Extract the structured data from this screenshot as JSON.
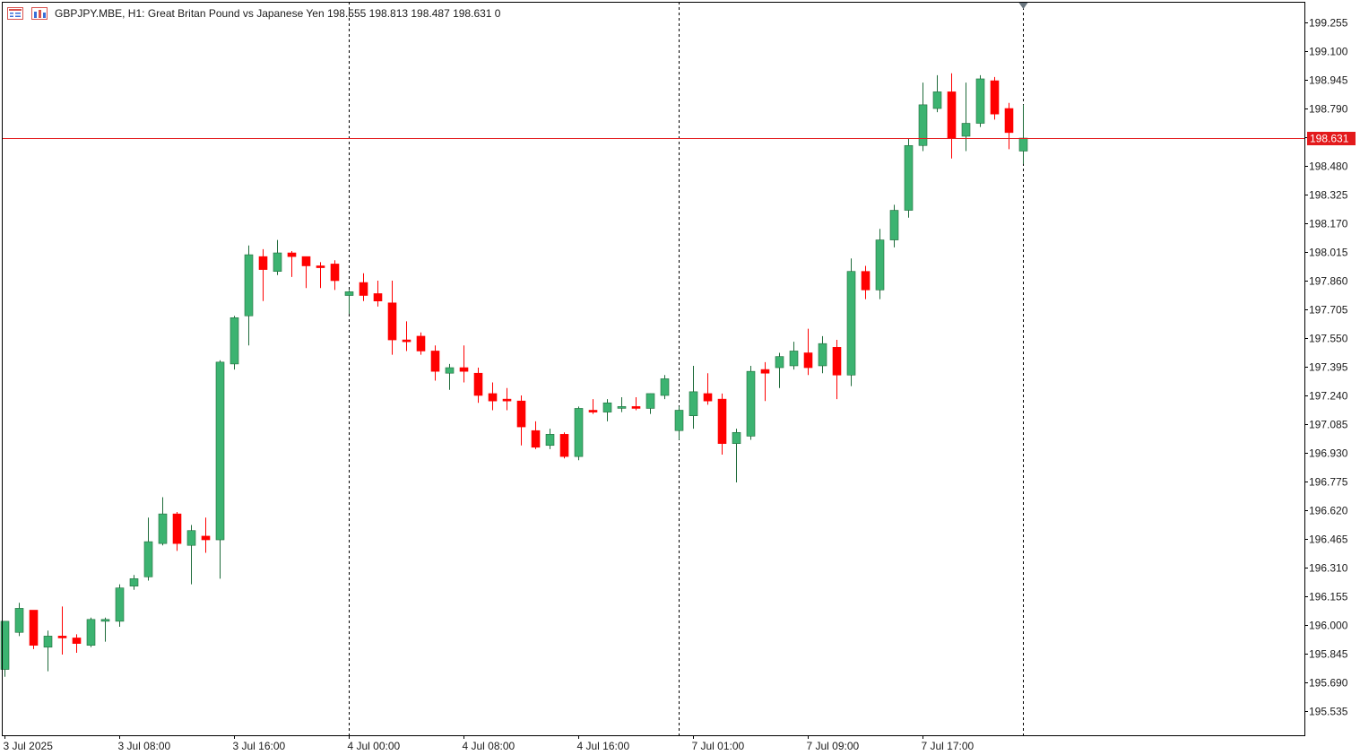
{
  "header": {
    "symbol_line": "GBPJPY.MBE, H1:  Great Britan Pound vs Japanese Yen  198.555 198.813 198.487 198.631  0",
    "icon_names": [
      "menu-lines-icon",
      "chart-window-icon"
    ]
  },
  "colors": {
    "bull": "#3cb371",
    "bear": "#ff0000",
    "wick": "#1e6b3a",
    "price_line": "#e31a1c",
    "frame": "#000000",
    "separator": "#000000"
  },
  "chart_data": {
    "type": "candlestick",
    "symbol": "GBPJPY.MBE",
    "timeframe": "H1",
    "current_price": 198.631,
    "current_price_label": "198.631",
    "y_ticks": [
      "199.255",
      "199.100",
      "198.945",
      "198.790",
      "198.635",
      "198.480",
      "198.325",
      "198.170",
      "198.015",
      "197.860",
      "197.705",
      "197.550",
      "197.395",
      "197.240",
      "197.085",
      "196.930",
      "196.775",
      "196.620",
      "196.465",
      "196.310",
      "196.155",
      "196.000",
      "195.845",
      "195.690",
      "195.535"
    ],
    "x_labels": [
      {
        "text": "3 Jul 2025",
        "index": 0
      },
      {
        "text": "3 Jul 08:00",
        "index": 8
      },
      {
        "text": "3 Jul 16:00",
        "index": 16
      },
      {
        "text": "4 Jul 00:00",
        "index": 24
      },
      {
        "text": "4 Jul 08:00",
        "index": 32
      },
      {
        "text": "4 Jul 16:00",
        "index": 40
      },
      {
        "text": "7 Jul 01:00",
        "index": 48
      },
      {
        "text": "7 Jul 09:00",
        "index": 56
      },
      {
        "text": "7 Jul 17:00",
        "index": 64
      }
    ],
    "day_separators": [
      24,
      47,
      71
    ],
    "candles": [
      {
        "o": 195.76,
        "h": 196.02,
        "l": 195.72,
        "c": 196.02
      },
      {
        "o": 195.96,
        "h": 196.12,
        "l": 195.94,
        "c": 196.09
      },
      {
        "o": 196.08,
        "h": 196.08,
        "l": 195.87,
        "c": 195.89
      },
      {
        "o": 195.88,
        "h": 195.97,
        "l": 195.75,
        "c": 195.94
      },
      {
        "o": 195.94,
        "h": 196.1,
        "l": 195.84,
        "c": 195.93
      },
      {
        "o": 195.93,
        "h": 195.95,
        "l": 195.85,
        "c": 195.9
      },
      {
        "o": 195.89,
        "h": 196.04,
        "l": 195.88,
        "c": 196.03
      },
      {
        "o": 196.02,
        "h": 196.04,
        "l": 195.91,
        "c": 196.03
      },
      {
        "o": 196.02,
        "h": 196.22,
        "l": 195.99,
        "c": 196.2
      },
      {
        "o": 196.21,
        "h": 196.27,
        "l": 196.19,
        "c": 196.25
      },
      {
        "o": 196.26,
        "h": 196.58,
        "l": 196.24,
        "c": 196.45
      },
      {
        "o": 196.44,
        "h": 196.69,
        "l": 196.43,
        "c": 196.6
      },
      {
        "o": 196.6,
        "h": 196.61,
        "l": 196.4,
        "c": 196.44
      },
      {
        "o": 196.43,
        "h": 196.54,
        "l": 196.22,
        "c": 196.51
      },
      {
        "o": 196.48,
        "h": 196.58,
        "l": 196.39,
        "c": 196.46
      },
      {
        "o": 196.46,
        "h": 197.43,
        "l": 196.25,
        "c": 197.42
      },
      {
        "o": 197.41,
        "h": 197.67,
        "l": 197.38,
        "c": 197.66
      },
      {
        "o": 197.67,
        "h": 198.05,
        "l": 197.51,
        "c": 198.0
      },
      {
        "o": 197.99,
        "h": 198.03,
        "l": 197.75,
        "c": 197.92
      },
      {
        "o": 197.91,
        "h": 198.08,
        "l": 197.89,
        "c": 198.01
      },
      {
        "o": 198.01,
        "h": 198.02,
        "l": 197.88,
        "c": 197.99
      },
      {
        "o": 197.99,
        "h": 197.99,
        "l": 197.82,
        "c": 197.94
      },
      {
        "o": 197.94,
        "h": 197.96,
        "l": 197.82,
        "c": 197.93
      },
      {
        "o": 197.95,
        "h": 197.97,
        "l": 197.81,
        "c": 197.86
      },
      {
        "o": 197.78,
        "h": 197.81,
        "l": 197.68,
        "c": 197.8
      },
      {
        "o": 197.85,
        "h": 197.9,
        "l": 197.75,
        "c": 197.78
      },
      {
        "o": 197.79,
        "h": 197.86,
        "l": 197.72,
        "c": 197.75
      },
      {
        "o": 197.74,
        "h": 197.86,
        "l": 197.46,
        "c": 197.54
      },
      {
        "o": 197.54,
        "h": 197.64,
        "l": 197.48,
        "c": 197.53
      },
      {
        "o": 197.56,
        "h": 197.58,
        "l": 197.46,
        "c": 197.48
      },
      {
        "o": 197.48,
        "h": 197.51,
        "l": 197.32,
        "c": 197.37
      },
      {
        "o": 197.36,
        "h": 197.41,
        "l": 197.27,
        "c": 197.39
      },
      {
        "o": 197.39,
        "h": 197.51,
        "l": 197.31,
        "c": 197.37
      },
      {
        "o": 197.36,
        "h": 197.39,
        "l": 197.2,
        "c": 197.24
      },
      {
        "o": 197.25,
        "h": 197.31,
        "l": 197.16,
        "c": 197.21
      },
      {
        "o": 197.22,
        "h": 197.28,
        "l": 197.16,
        "c": 197.21
      },
      {
        "o": 197.21,
        "h": 197.24,
        "l": 196.97,
        "c": 197.07
      },
      {
        "o": 197.05,
        "h": 197.1,
        "l": 196.95,
        "c": 196.96
      },
      {
        "o": 196.97,
        "h": 197.06,
        "l": 196.95,
        "c": 197.03
      },
      {
        "o": 197.03,
        "h": 197.04,
        "l": 196.9,
        "c": 196.91
      },
      {
        "o": 196.91,
        "h": 197.18,
        "l": 196.89,
        "c": 197.17
      },
      {
        "o": 197.16,
        "h": 197.22,
        "l": 197.14,
        "c": 197.15
      },
      {
        "o": 197.15,
        "h": 197.22,
        "l": 197.1,
        "c": 197.2
      },
      {
        "o": 197.18,
        "h": 197.23,
        "l": 197.15,
        "c": 197.18
      },
      {
        "o": 197.18,
        "h": 197.23,
        "l": 197.16,
        "c": 197.17
      },
      {
        "o": 197.17,
        "h": 197.25,
        "l": 197.14,
        "c": 197.25
      },
      {
        "o": 197.24,
        "h": 197.35,
        "l": 197.22,
        "c": 197.33
      },
      {
        "o": 197.05,
        "h": 197.18,
        "l": 197.0,
        "c": 197.16
      },
      {
        "o": 197.13,
        "h": 197.4,
        "l": 197.06,
        "c": 197.26
      },
      {
        "o": 197.25,
        "h": 197.36,
        "l": 197.19,
        "c": 197.21
      },
      {
        "o": 197.22,
        "h": 197.25,
        "l": 196.92,
        "c": 196.98
      },
      {
        "o": 196.98,
        "h": 197.06,
        "l": 196.77,
        "c": 197.04
      },
      {
        "o": 197.02,
        "h": 197.4,
        "l": 197.0,
        "c": 197.37
      },
      {
        "o": 197.38,
        "h": 197.42,
        "l": 197.21,
        "c": 197.36
      },
      {
        "o": 197.39,
        "h": 197.47,
        "l": 197.28,
        "c": 197.45
      },
      {
        "o": 197.4,
        "h": 197.53,
        "l": 197.38,
        "c": 197.48
      },
      {
        "o": 197.47,
        "h": 197.6,
        "l": 197.35,
        "c": 197.39
      },
      {
        "o": 197.4,
        "h": 197.56,
        "l": 197.36,
        "c": 197.52
      },
      {
        "o": 197.5,
        "h": 197.54,
        "l": 197.22,
        "c": 197.35
      },
      {
        "o": 197.35,
        "h": 197.98,
        "l": 197.29,
        "c": 197.91
      },
      {
        "o": 197.91,
        "h": 197.94,
        "l": 197.76,
        "c": 197.81
      },
      {
        "o": 197.81,
        "h": 198.14,
        "l": 197.76,
        "c": 198.08
      },
      {
        "o": 198.08,
        "h": 198.27,
        "l": 198.04,
        "c": 198.24
      },
      {
        "o": 198.24,
        "h": 198.63,
        "l": 198.2,
        "c": 198.59
      },
      {
        "o": 198.59,
        "h": 198.93,
        "l": 198.56,
        "c": 198.81
      },
      {
        "o": 198.79,
        "h": 198.97,
        "l": 198.77,
        "c": 198.88
      },
      {
        "o": 198.88,
        "h": 198.98,
        "l": 198.52,
        "c": 198.63
      },
      {
        "o": 198.64,
        "h": 198.93,
        "l": 198.56,
        "c": 198.71
      },
      {
        "o": 198.71,
        "h": 198.97,
        "l": 198.69,
        "c": 198.95
      },
      {
        "o": 198.94,
        "h": 198.96,
        "l": 198.73,
        "c": 198.76
      },
      {
        "o": 198.79,
        "h": 198.82,
        "l": 198.57,
        "c": 198.66
      },
      {
        "o": 198.56,
        "h": 198.81,
        "l": 198.49,
        "c": 198.63
      }
    ]
  }
}
